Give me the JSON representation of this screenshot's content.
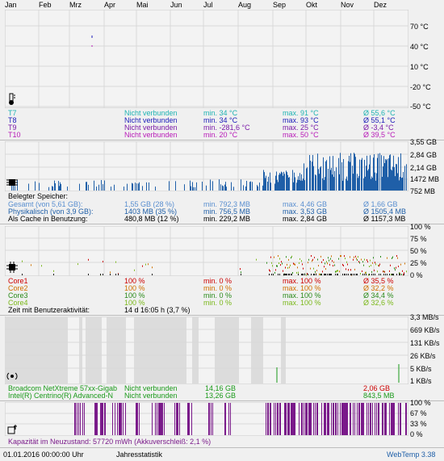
{
  "months": [
    "Jan",
    "Feb",
    "Mrz",
    "Apr",
    "Mai",
    "Jun",
    "Jul",
    "Aug",
    "Sep",
    "Okt",
    "Nov",
    "Dez"
  ],
  "temp": {
    "axis": [
      "70 °C",
      "40 °C",
      "10 °C",
      "-20 °C",
      "-50 °C"
    ],
    "rows": [
      {
        "name": "T7",
        "status": "Nicht verbunden",
        "min": "min. 34 °C",
        "max": "max. 91 °C",
        "avg": "Ø 55,6 °C",
        "color": "#1fb3b3"
      },
      {
        "name": "T8",
        "status": "Nicht verbunden",
        "min": "min. 34 °C",
        "max": "max. 93 °C",
        "avg": "Ø 55,1 °C",
        "color": "#1a1ab8"
      },
      {
        "name": "T9",
        "status": "Nicht verbunden",
        "min": "min. -281,6 °C",
        "max": "max. 25 °C",
        "avg": "Ø -3,4 °C",
        "color": "#7a1aa8"
      },
      {
        "name": "T10",
        "status": "Nicht verbunden",
        "min": "min. 20 °C",
        "max": "max. 50 °C",
        "avg": "Ø 39,5 °C",
        "color": "#b81ab8"
      }
    ]
  },
  "memory": {
    "axis": [
      "3,55 GB",
      "2,84 GB",
      "2,14 GB",
      "1472 MB",
      "752 MB"
    ],
    "title": "Belegter Speicher:",
    "rows": [
      {
        "name": "Gesamt (von 5,61 GB):",
        "val": "1,55 GB (28 %)",
        "min": "min. 792,3 MB",
        "max": "max. 4,46 GB",
        "avg": "Ø 1,66 GB",
        "color": "#5a8fd0"
      },
      {
        "name": "Physikalisch (von 3,9 GB):",
        "val": "1403 MB (35 %)",
        "min": "min. 756,5 MB",
        "max": "max. 3,53 GB",
        "avg": "Ø 1505,4 MB",
        "color": "#1f5fa8"
      },
      {
        "name": "Als Cache in Benutzung:",
        "val": "480,8 MB (12 %)",
        "min": "min. 229,2 MB",
        "max": "max. 2,84 GB",
        "avg": "Ø 1157,3 MB",
        "color": "#000000"
      }
    ]
  },
  "cpu": {
    "axis": [
      "100 %",
      "75 %",
      "50 %",
      "25 %",
      "0 %"
    ],
    "rows": [
      {
        "name": "Core1",
        "val": "100 %",
        "min": "min. 0 %",
        "max": "max. 100 %",
        "avg": "Ø 35,5 %",
        "color": "#cc0000"
      },
      {
        "name": "Core2",
        "val": "100 %",
        "min": "min. 0 %",
        "max": "max. 100 %",
        "avg": "Ø 32,2 %",
        "color": "#d07000"
      },
      {
        "name": "Core3",
        "val": "100 %",
        "min": "min. 0 %",
        "max": "max. 100 %",
        "avg": "Ø 34,4 %",
        "color": "#2a8a1a"
      },
      {
        "name": "Core4",
        "val": "100 %",
        "min": "min. 0 %",
        "max": "max. 100 %",
        "avg": "Ø 32,6 %",
        "color": "#7ab81a"
      }
    ],
    "activity_label": "Zeit mit Benutzeraktivität:",
    "activity_value": "14 d 16:05 h (3,7 %)"
  },
  "net": {
    "axis": [
      "3,3 MB/s",
      "669 KB/s",
      "131 KB/s",
      "26 KB/s",
      "5 KB/s",
      "1 KB/s"
    ],
    "rows": [
      {
        "name": "Broadcom NetXtreme 57xx-Gigab",
        "status": "Nicht verbunden",
        "a": "14,16 GB",
        "b": "2,06 GB",
        "color": "#1a9a1a",
        "bcolor": "#cc0000"
      },
      {
        "name": "Intel(R) Centrino(R) Advanced-N",
        "status": "Nicht verbunden",
        "a": "13,26 GB",
        "b": "843,5 MB",
        "color": "#1a9a1a",
        "bcolor": "#1a9a1a"
      }
    ]
  },
  "battery": {
    "axis": [
      "100 %",
      "67 %",
      "33 %",
      "0 %"
    ],
    "capacity": "Kapazität im Neuzustand: 57720 mWh (Akkuverschleiß: 2,1 %)"
  },
  "footer": {
    "datetime": "01.01.2016 00:00:00 Uhr",
    "mode": "Jahresstatistik",
    "app": "WebTemp 3.38"
  },
  "colors": {
    "mem": "#1f5fa8",
    "batt": "#7a1a8a",
    "grid": "#d8d8d8"
  }
}
